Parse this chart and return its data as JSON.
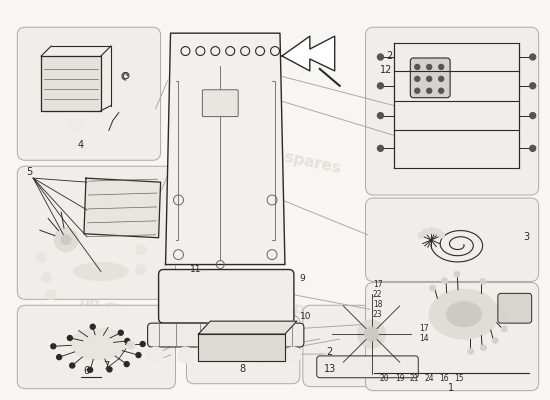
{
  "bg_color": "#f7f6f2",
  "box_fill": "#f0eeea",
  "box_edge": "#aaaaaa",
  "line_color": "#2a2a2a",
  "mid_line": "#666666",
  "light_line": "#aaaaaa",
  "watermark_color": "#dbd8d0",
  "watermark_text": "no-spares",
  "seat_fill": "#f5f4f0",
  "arrow_fill": "#ffffff"
}
